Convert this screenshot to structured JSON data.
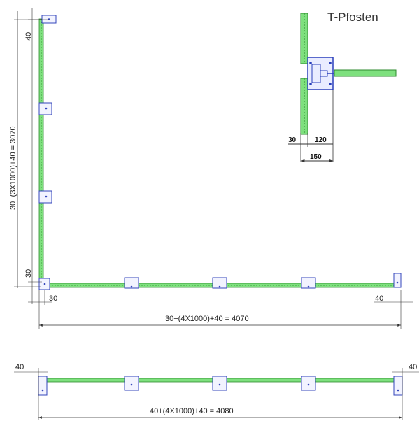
{
  "detail": {
    "title": "T-Pfosten",
    "dim_offset": "30",
    "dim_arm": "120",
    "dim_total": "150"
  },
  "plan_l": {
    "vertical_label": "30+(3X1000)+40 = 3070",
    "vertical_top": "40",
    "vertical_bottom": "30",
    "horizontal_label": "30+(4X1000)+40 = 4070",
    "horizontal_left": "30",
    "horizontal_right": "40"
  },
  "plan_straight": {
    "label": "40+(4X1000)+40 = 4080",
    "left": "40",
    "right": "40"
  },
  "colors": {
    "rail": "#55cc55",
    "post": "#3344bb",
    "dimension": "#333333"
  }
}
